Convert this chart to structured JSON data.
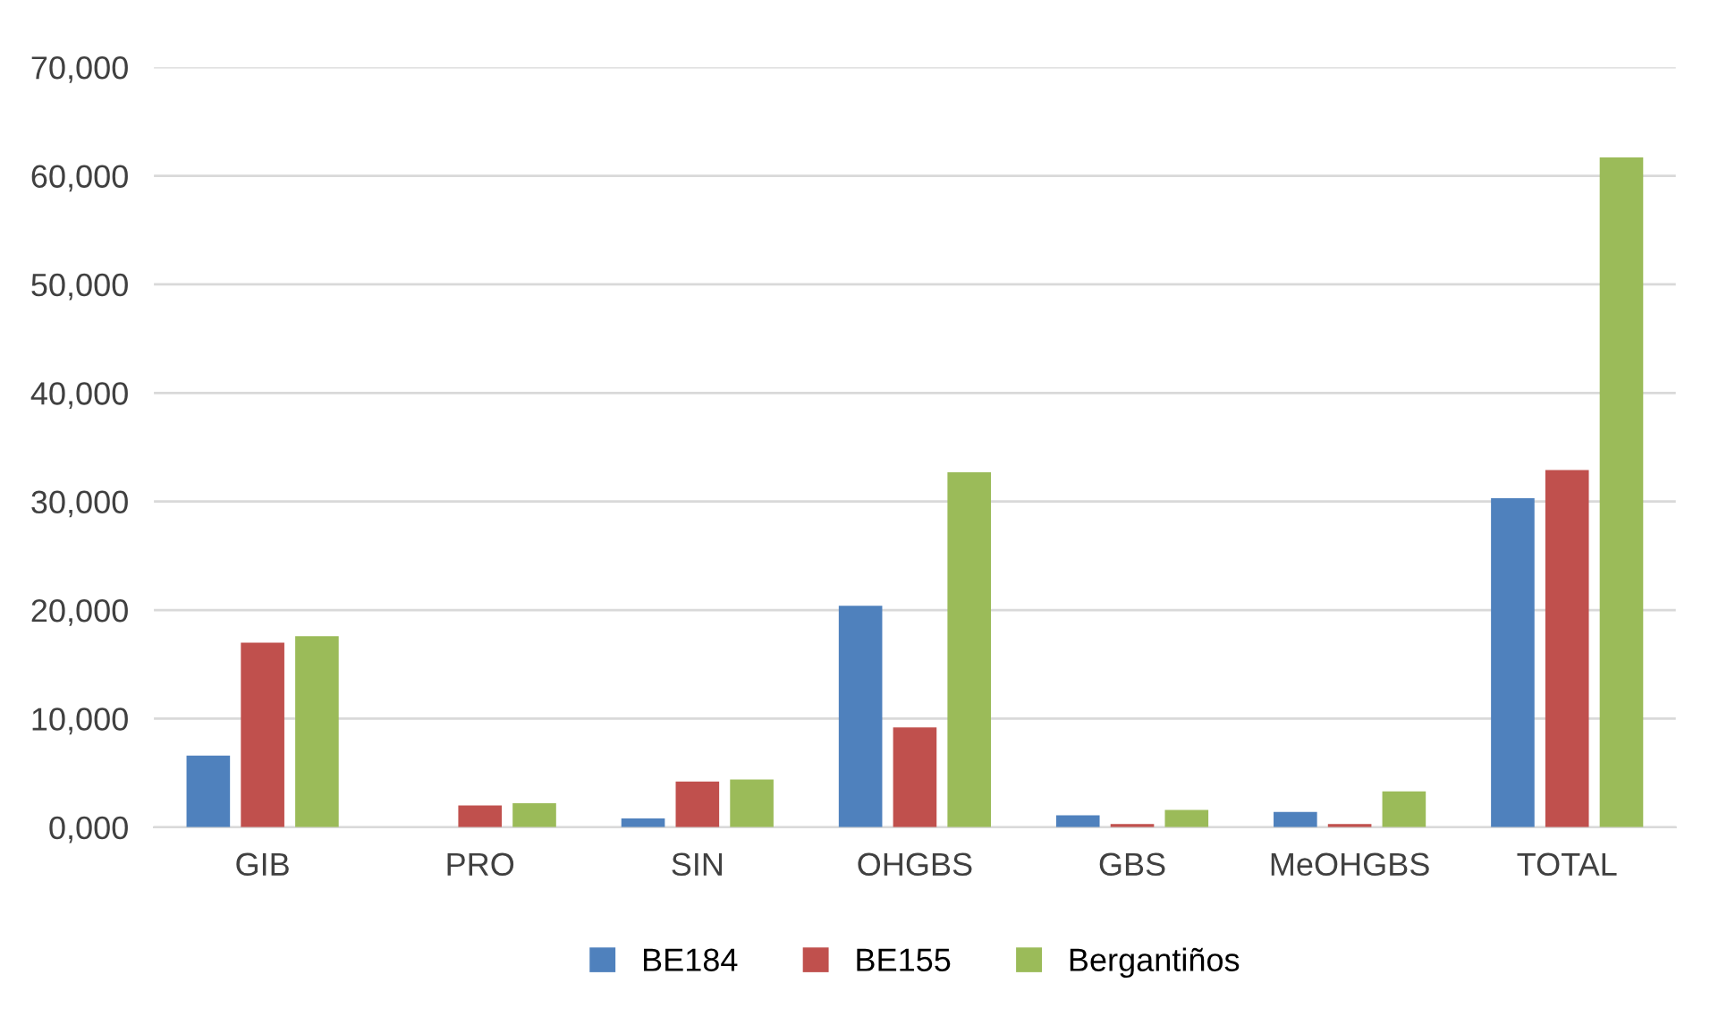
{
  "chart_data": {
    "type": "bar",
    "categories": [
      "GIB",
      "PRO",
      "SIN",
      "OHGBS",
      "GBS",
      "MeOHGBS",
      "TOTAL"
    ],
    "series": [
      {
        "name": "BE184",
        "color": "#4f81bd",
        "values": [
          6600,
          0,
          800,
          20400,
          1100,
          1400,
          30300
        ]
      },
      {
        "name": "BE155",
        "color": "#c0504d",
        "values": [
          17000,
          2000,
          4200,
          9200,
          300,
          300,
          32900
        ]
      },
      {
        "name": "Bergantiños",
        "color": "#9bbb59",
        "values": [
          17600,
          2200,
          4400,
          32700,
          1600,
          3300,
          61700
        ]
      }
    ],
    "ylim": [
      0,
      70000
    ],
    "yticks": [
      {
        "value": 0,
        "label": "0,000"
      },
      {
        "value": 10000,
        "label": "10,000"
      },
      {
        "value": 20000,
        "label": "20,000"
      },
      {
        "value": 30000,
        "label": "30,000"
      },
      {
        "value": 40000,
        "label": "40,000"
      },
      {
        "value": 50000,
        "label": "50,000"
      },
      {
        "value": 60000,
        "label": "60,000"
      },
      {
        "value": 70000,
        "label": "70,000"
      }
    ],
    "grid": "y",
    "legend": "bottom"
  }
}
